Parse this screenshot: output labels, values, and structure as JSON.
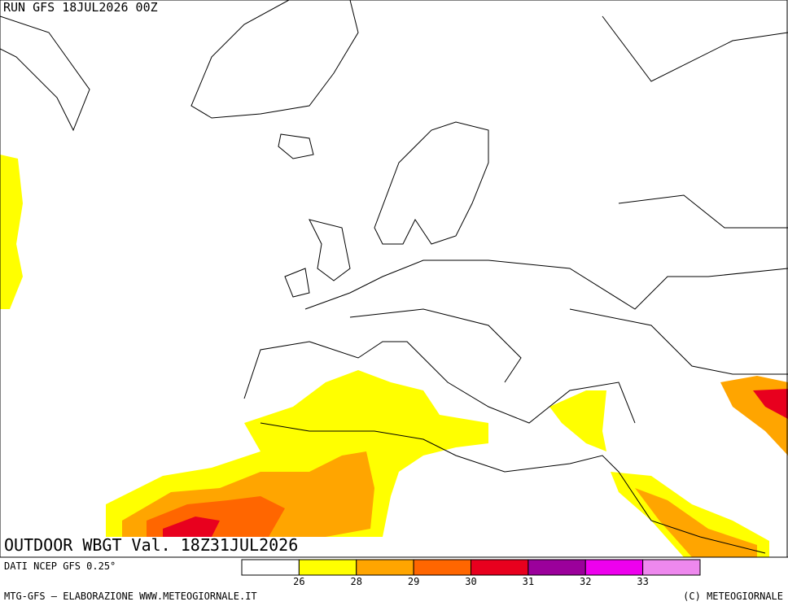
{
  "header": {
    "run": "RUN GFS 18JUL2026 00Z"
  },
  "map": {
    "title": "OUTDOOR WBGT Val. 18Z31JUL2026"
  },
  "legend": {
    "source": "DATI NCEP GFS 0.25°",
    "colors": [
      "#ffffff",
      "#ffff00",
      "#ffa500",
      "#ff6600",
      "#e8001e",
      "#9b009b",
      "#ee00ee",
      "#ee88ee"
    ],
    "ticks": [
      26,
      28,
      29,
      30,
      31,
      32,
      33
    ]
  },
  "footer": {
    "left": "MTG-GFS — ELABORAZIONE WWW.METEOGIORNALE.IT",
    "right": "(C) METEOGIORNALE"
  }
}
